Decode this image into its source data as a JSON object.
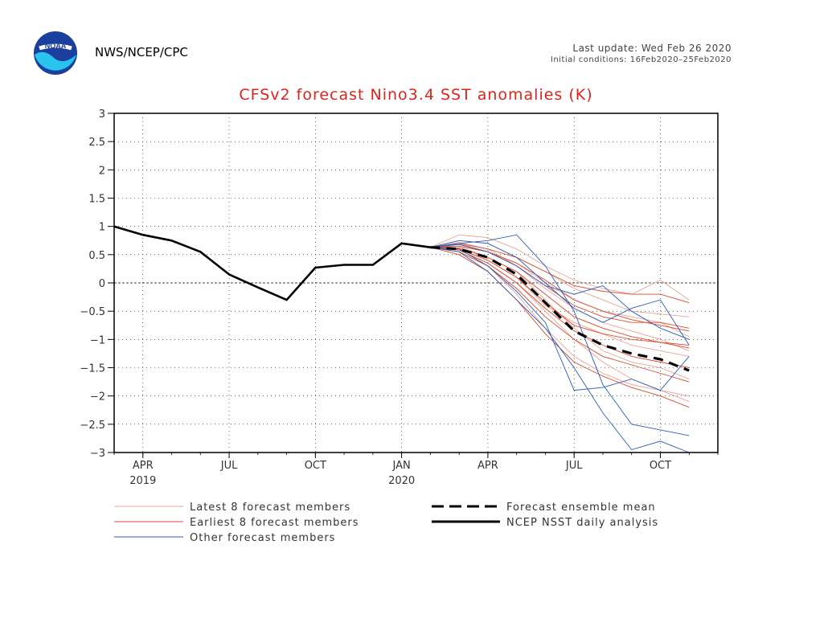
{
  "header": {
    "org": "NWS/NCEP/CPC",
    "last_update": "Last update: Wed Feb 26 2020",
    "initial_conditions": "Initial conditions: 16Feb2020–25Feb2020",
    "logo_text": "NOAA"
  },
  "colors": {
    "title": "#d9261c",
    "latest_members": "#e8a39a",
    "earliest_members": "#d94a2a",
    "other_members": "#2a5fb8",
    "analysis": "#000000"
  },
  "chart_data": {
    "type": "line",
    "title": "CFSv2 forecast Nino3.4 SST anomalies (K)",
    "ylim": [
      -3,
      3
    ],
    "yticks": [
      3,
      2.5,
      2,
      1.5,
      1,
      0.5,
      0,
      -0.5,
      -1,
      -1.5,
      -2,
      -2.5,
      -3
    ],
    "ytick_labels": [
      "3",
      "2.5",
      "2",
      "1.5",
      "1",
      "0.5",
      "0",
      "−0.5",
      "−1",
      "−1.5",
      "−2",
      "−2.5",
      "−3"
    ],
    "x_unit": "month",
    "x_range": [
      "2019-03",
      "2020-12"
    ],
    "xticks": [
      {
        "date": "2019-04",
        "label": "APR",
        "year": "2019"
      },
      {
        "date": "2019-07",
        "label": "JUL",
        "year": ""
      },
      {
        "date": "2019-10",
        "label": "OCT",
        "year": ""
      },
      {
        "date": "2020-01",
        "label": "JAN",
        "year": "2020"
      },
      {
        "date": "2020-04",
        "label": "APR",
        "year": ""
      },
      {
        "date": "2020-07",
        "label": "JUL",
        "year": ""
      },
      {
        "date": "2020-10",
        "label": "OCT",
        "year": ""
      }
    ],
    "grid": true,
    "legend": [
      {
        "label": "Latest 8 forecast members",
        "style": "latest"
      },
      {
        "label": "Earliest 8 forecast members",
        "style": "earliest"
      },
      {
        "label": "Other forecast members",
        "style": "other"
      },
      {
        "label": "Forecast ensemble mean",
        "style": "mean"
      },
      {
        "label": "NCEP NSST daily analysis",
        "style": "analysis"
      }
    ],
    "series": [
      {
        "name": "NCEP NSST daily analysis",
        "style": "analysis",
        "x": [
          "2019-03",
          "2019-04",
          "2019-05",
          "2019-06",
          "2019-07",
          "2019-08",
          "2019-09",
          "2019-10",
          "2019-11",
          "2019-12",
          "2020-01",
          "2020-02"
        ],
        "y": [
          1.0,
          0.85,
          0.75,
          0.55,
          0.15,
          -0.08,
          -0.3,
          0.27,
          0.32,
          0.32,
          0.7,
          0.63
        ]
      },
      {
        "name": "Forecast ensemble mean",
        "style": "mean",
        "x": [
          "2020-02",
          "2020-03",
          "2020-04",
          "2020-05",
          "2020-06",
          "2020-07",
          "2020-08",
          "2020-09",
          "2020-10",
          "2020-11"
        ],
        "y": [
          0.63,
          0.6,
          0.45,
          0.15,
          -0.35,
          -0.85,
          -1.1,
          -1.25,
          -1.35,
          -1.55
        ]
      },
      {
        "style": "latest",
        "x": [
          "2020-02",
          "2020-03",
          "2020-04",
          "2020-05",
          "2020-06",
          "2020-07",
          "2020-08",
          "2020-09",
          "2020-10",
          "2020-11"
        ],
        "y": [
          0.63,
          0.85,
          0.8,
          0.6,
          0.3,
          0.05,
          -0.1,
          -0.2,
          0.05,
          -0.3
        ]
      },
      {
        "style": "latest",
        "x": [
          "2020-02",
          "2020-03",
          "2020-04",
          "2020-05",
          "2020-06",
          "2020-07",
          "2020-08",
          "2020-09",
          "2020-10",
          "2020-11"
        ],
        "y": [
          0.63,
          0.7,
          0.55,
          0.35,
          0.0,
          -0.3,
          -0.5,
          -0.6,
          -0.7,
          -0.95
        ]
      },
      {
        "style": "latest",
        "x": [
          "2020-02",
          "2020-03",
          "2020-04",
          "2020-05",
          "2020-06",
          "2020-07",
          "2020-08",
          "2020-09",
          "2020-10",
          "2020-11"
        ],
        "y": [
          0.63,
          0.6,
          0.4,
          0.1,
          -0.4,
          -0.7,
          -0.9,
          -1.1,
          -1.2,
          -1.3
        ]
      },
      {
        "style": "latest",
        "x": [
          "2020-02",
          "2020-03",
          "2020-04",
          "2020-05",
          "2020-06",
          "2020-07",
          "2020-08",
          "2020-09",
          "2020-10",
          "2020-11"
        ],
        "y": [
          0.63,
          0.55,
          0.3,
          -0.2,
          -0.8,
          -1.3,
          -1.6,
          -1.8,
          -1.9,
          -2.1
        ]
      },
      {
        "style": "latest",
        "x": [
          "2020-02",
          "2020-03",
          "2020-04",
          "2020-05",
          "2020-06",
          "2020-07",
          "2020-08",
          "2020-09",
          "2020-10",
          "2020-11"
        ],
        "y": [
          0.63,
          0.75,
          0.7,
          0.45,
          0.2,
          -0.1,
          -0.3,
          -0.5,
          -0.55,
          -0.6
        ]
      },
      {
        "style": "latest",
        "x": [
          "2020-02",
          "2020-03",
          "2020-04",
          "2020-05",
          "2020-06",
          "2020-07",
          "2020-08",
          "2020-09",
          "2020-10",
          "2020-11"
        ],
        "y": [
          0.63,
          0.65,
          0.45,
          0.2,
          -0.3,
          -0.8,
          -1.2,
          -1.4,
          -1.5,
          -1.7
        ]
      },
      {
        "style": "latest",
        "x": [
          "2020-02",
          "2020-03",
          "2020-04",
          "2020-05",
          "2020-06",
          "2020-07",
          "2020-08",
          "2020-09",
          "2020-10",
          "2020-11"
        ],
        "y": [
          0.63,
          0.58,
          0.35,
          0.0,
          -0.5,
          -1.0,
          -1.4,
          -1.7,
          -1.9,
          -2.0
        ]
      },
      {
        "style": "latest",
        "x": [
          "2020-02",
          "2020-03",
          "2020-04",
          "2020-05",
          "2020-06",
          "2020-07",
          "2020-08",
          "2020-09",
          "2020-10",
          "2020-11"
        ],
        "y": [
          0.63,
          0.72,
          0.6,
          0.3,
          -0.1,
          -0.45,
          -0.7,
          -0.85,
          -1.0,
          -1.2
        ]
      },
      {
        "style": "earliest",
        "x": [
          "2020-02",
          "2020-03",
          "2020-04",
          "2020-05",
          "2020-06",
          "2020-07",
          "2020-08",
          "2020-09",
          "2020-10",
          "2020-11"
        ],
        "y": [
          0.63,
          0.65,
          0.55,
          0.35,
          0.05,
          -0.3,
          -0.5,
          -0.65,
          -0.75,
          -0.85
        ]
      },
      {
        "style": "earliest",
        "x": [
          "2020-02",
          "2020-03",
          "2020-04",
          "2020-05",
          "2020-06",
          "2020-07",
          "2020-08",
          "2020-09",
          "2020-10",
          "2020-11"
        ],
        "y": [
          0.63,
          0.6,
          0.4,
          0.1,
          -0.35,
          -0.75,
          -0.9,
          -1.0,
          -1.05,
          -1.15
        ]
      },
      {
        "style": "earliest",
        "x": [
          "2020-02",
          "2020-03",
          "2020-04",
          "2020-05",
          "2020-06",
          "2020-07",
          "2020-08",
          "2020-09",
          "2020-10",
          "2020-11"
        ],
        "y": [
          0.63,
          0.55,
          0.3,
          -0.1,
          -0.6,
          -1.0,
          -1.3,
          -1.45,
          -1.6,
          -1.75
        ]
      },
      {
        "style": "earliest",
        "x": [
          "2020-02",
          "2020-03",
          "2020-04",
          "2020-05",
          "2020-06",
          "2020-07",
          "2020-08",
          "2020-09",
          "2020-10",
          "2020-11"
        ],
        "y": [
          0.63,
          0.7,
          0.6,
          0.45,
          0.2,
          -0.05,
          -0.15,
          -0.2,
          -0.2,
          -0.35
        ]
      },
      {
        "style": "earliest",
        "x": [
          "2020-02",
          "2020-03",
          "2020-04",
          "2020-05",
          "2020-06",
          "2020-07",
          "2020-08",
          "2020-09",
          "2020-10",
          "2020-11"
        ],
        "y": [
          0.63,
          0.5,
          0.2,
          -0.3,
          -0.9,
          -1.4,
          -1.65,
          -1.85,
          -2.0,
          -2.2
        ]
      },
      {
        "style": "earliest",
        "x": [
          "2020-02",
          "2020-03",
          "2020-04",
          "2020-05",
          "2020-06",
          "2020-07",
          "2020-08",
          "2020-09",
          "2020-10",
          "2020-11"
        ],
        "y": [
          0.63,
          0.62,
          0.45,
          0.2,
          -0.2,
          -0.6,
          -0.8,
          -0.95,
          -1.05,
          -1.1
        ]
      },
      {
        "style": "earliest",
        "x": [
          "2020-02",
          "2020-03",
          "2020-04",
          "2020-05",
          "2020-06",
          "2020-07",
          "2020-08",
          "2020-09",
          "2020-10",
          "2020-11"
        ],
        "y": [
          0.63,
          0.58,
          0.35,
          0.0,
          -0.45,
          -0.85,
          -1.1,
          -1.3,
          -1.4,
          -1.5
        ]
      },
      {
        "style": "earliest",
        "x": [
          "2020-02",
          "2020-03",
          "2020-04",
          "2020-05",
          "2020-06",
          "2020-07",
          "2020-08",
          "2020-09",
          "2020-10",
          "2020-11"
        ],
        "y": [
          0.63,
          0.68,
          0.55,
          0.3,
          -0.05,
          -0.4,
          -0.6,
          -0.7,
          -0.7,
          -0.8
        ]
      },
      {
        "style": "other",
        "x": [
          "2020-02",
          "2020-03",
          "2020-04",
          "2020-05",
          "2020-06",
          "2020-07",
          "2020-08",
          "2020-09",
          "2020-10",
          "2020-11"
        ],
        "y": [
          0.63,
          0.7,
          0.75,
          0.85,
          0.3,
          -0.5,
          -1.8,
          -2.5,
          -2.6,
          -2.7
        ]
      },
      {
        "style": "other",
        "x": [
          "2020-02",
          "2020-03",
          "2020-04",
          "2020-05",
          "2020-06",
          "2020-07",
          "2020-08",
          "2020-09",
          "2020-10",
          "2020-11"
        ],
        "y": [
          0.63,
          0.55,
          0.2,
          -0.3,
          -0.8,
          -1.5,
          -2.3,
          -2.95,
          -2.8,
          -3.0
        ]
      },
      {
        "style": "other",
        "x": [
          "2020-02",
          "2020-03",
          "2020-04",
          "2020-05",
          "2020-06",
          "2020-07",
          "2020-08",
          "2020-09",
          "2020-10",
          "2020-11"
        ],
        "y": [
          0.63,
          0.75,
          0.7,
          0.45,
          0.0,
          -0.45,
          -0.7,
          -0.45,
          -0.3,
          -1.1
        ]
      },
      {
        "style": "other",
        "x": [
          "2020-02",
          "2020-03",
          "2020-04",
          "2020-05",
          "2020-06",
          "2020-07",
          "2020-08",
          "2020-09",
          "2020-10",
          "2020-11"
        ],
        "y": [
          0.63,
          0.6,
          0.3,
          -0.15,
          -0.7,
          -1.9,
          -1.85,
          -1.7,
          -1.9,
          -1.3
        ]
      },
      {
        "style": "other",
        "x": [
          "2020-02",
          "2020-03",
          "2020-04",
          "2020-05",
          "2020-06",
          "2020-07",
          "2020-08",
          "2020-09",
          "2020-10",
          "2020-11"
        ],
        "y": [
          0.63,
          0.68,
          0.55,
          0.3,
          -0.05,
          -0.2,
          -0.05,
          -0.5,
          -0.8,
          -1.0
        ]
      }
    ]
  }
}
